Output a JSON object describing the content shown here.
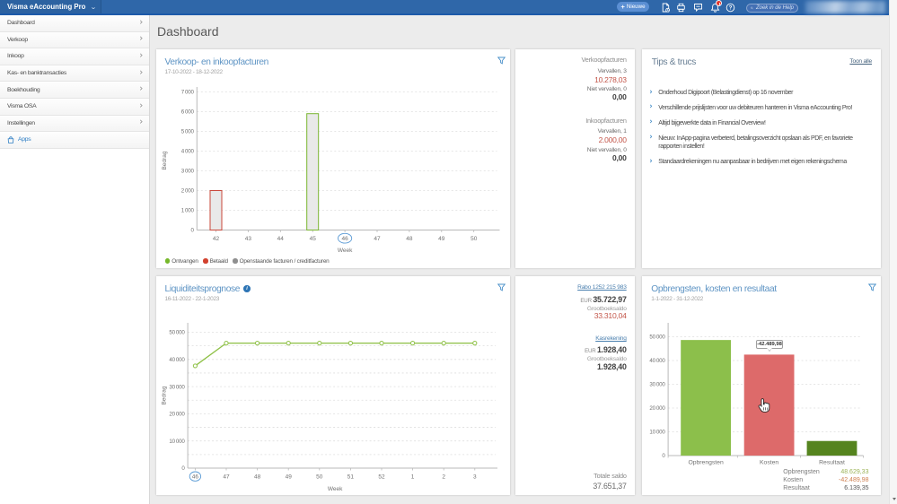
{
  "topbar": {
    "app_title": "Visma eAccounting Pro",
    "new_button": "Nieuwe",
    "search_placeholder": "Zoek in de Help",
    "icon_names": [
      "document-icon",
      "printer-icon",
      "chat-icon",
      "bell-icon",
      "help-icon"
    ],
    "colors": {
      "bar": "#2f67a9",
      "bar_border": "#1d5aa9",
      "new_button": "#5b8fd3",
      "badge": "#e5352c"
    }
  },
  "sidebar": {
    "items": [
      {
        "label": "Dashboard"
      },
      {
        "label": "Verkoop"
      },
      {
        "label": "Inkoop"
      },
      {
        "label": "Kas- en banktransacties"
      },
      {
        "label": "Boekhouding"
      },
      {
        "label": "Visma OSA"
      },
      {
        "label": "Instellingen"
      }
    ],
    "apps_label": "Apps"
  },
  "page_title": "Dashboard",
  "cards": {
    "invoice_summary": {
      "sections": [
        {
          "title": "Verkoopfacturen",
          "overdue_label": "Vervallen, 3",
          "overdue_value": "10.278,03",
          "not_overdue_label": "Niet vervallen, 0",
          "not_overdue_value": "0,00"
        },
        {
          "title": "Inkoopfacturen",
          "overdue_label": "Vervallen, 1",
          "overdue_value": "2.000,00",
          "not_overdue_label": "Niet vervallen, 0",
          "not_overdue_value": "0,00"
        }
      ]
    },
    "tips": {
      "title": "Tips & trucs",
      "show_all": "Toon alle",
      "items": [
        {
          "text": "Onderhoud Digipoort (Belastingdienst) op 16 november"
        },
        {
          "text": "Verschillende prijslijsten voor uw debiteuren hanteren in Visma eAccounting Pro!"
        },
        {
          "text": "Altijd bijgewerkte data in Financial Overview!"
        },
        {
          "text": "Nieuw: InApp-pagina verbeterd, betalingsoverzicht opslaan als PDF, en favoriete rapporten instellen!"
        },
        {
          "text": "Standaardrekeningen nu aanpasbaar in bedrijven met eigen rekeningschema"
        }
      ]
    },
    "accounts": {
      "accounts": [
        {
          "name": "Rabo 1252 215 983",
          "currency": "EUR",
          "balance": "35.722,97",
          "ledger_label": "Grootboeksaldo",
          "ledger_balance": "33.310,04",
          "ledger_style": "red"
        },
        {
          "name": "Kasrekening",
          "currency": "EUR",
          "balance": "1.928,40",
          "ledger_label": "Grootboeksaldo",
          "ledger_balance": "1.928,40",
          "ledger_style": "dark"
        }
      ],
      "total_label": "Totale saldo",
      "total_value": "37.651,37"
    }
  },
  "chart_data": [
    {
      "id": "sales_purchase_invoices",
      "type": "bar",
      "title": "Verkoop- en inkoopfacturen",
      "date_range": "17-10-2022 - 18-12-2022",
      "xlabel": "Week",
      "ylabel": "Bedrag",
      "ylim": [
        0,
        7000
      ],
      "ytick_step": 1000,
      "grid": true,
      "categories": [
        "42",
        "43",
        "44",
        "45",
        "46",
        "47",
        "48",
        "49",
        "50"
      ],
      "current_week": "46",
      "bars": [
        {
          "week": "42",
          "value": 2000,
          "border": "#c9473a"
        },
        {
          "week": "45",
          "value": 5900,
          "border": "#79b530"
        }
      ],
      "bar_fill": "#e9e9e9",
      "legend_position": "bottom-left",
      "legend": [
        {
          "label": "Ontvangen",
          "color": "#76b82a"
        },
        {
          "label": "Betaald",
          "color": "#d2422f"
        },
        {
          "label": "Openstaande facturen / creditfacturen",
          "color": "#8f8f8f"
        }
      ]
    },
    {
      "id": "liquidity_forecast",
      "type": "line",
      "title": "Liquiditeitsprognose",
      "date_range": "16-11-2022 - 22-1-2023",
      "xlabel": "Week",
      "ylabel": "Bedrag",
      "ylim": [
        0,
        50000
      ],
      "ytick_step": 10000,
      "grid_step": 5000,
      "grid": true,
      "categories": [
        "46",
        "47",
        "48",
        "49",
        "50",
        "51",
        "52",
        "1",
        "2",
        "3"
      ],
      "current_week": "46",
      "values": [
        37651,
        46000,
        46000,
        46000,
        46000,
        46000,
        46000,
        46000,
        46000,
        46000
      ],
      "line_color": "#8dc044"
    },
    {
      "id": "revenue_cost_result",
      "type": "bar",
      "title": "Opbrengsten, kosten en resultaat",
      "date_range": "1-1-2022 - 31-12-2022",
      "xlabel": "",
      "ylabel": "",
      "ylim": [
        0,
        50000
      ],
      "ytick_step": 10000,
      "grid": true,
      "categories": [
        "Opbrengsten",
        "Kosten",
        "Resultaat"
      ],
      "values": [
        48629.33,
        42489.98,
        6139.35
      ],
      "colors": [
        "#8cbf4b",
        "#dd6a6a",
        "#55841f"
      ],
      "tooltip": "-42.489,98",
      "summary": [
        {
          "label": "Opbrengsten",
          "value": "48.629,33",
          "color": "#9cb357"
        },
        {
          "label": "Kosten",
          "value": "-42.489,98",
          "color": "#cf7f4e"
        },
        {
          "label": "Resultaat",
          "value": "6.139,35",
          "color": "#555555"
        }
      ]
    }
  ]
}
